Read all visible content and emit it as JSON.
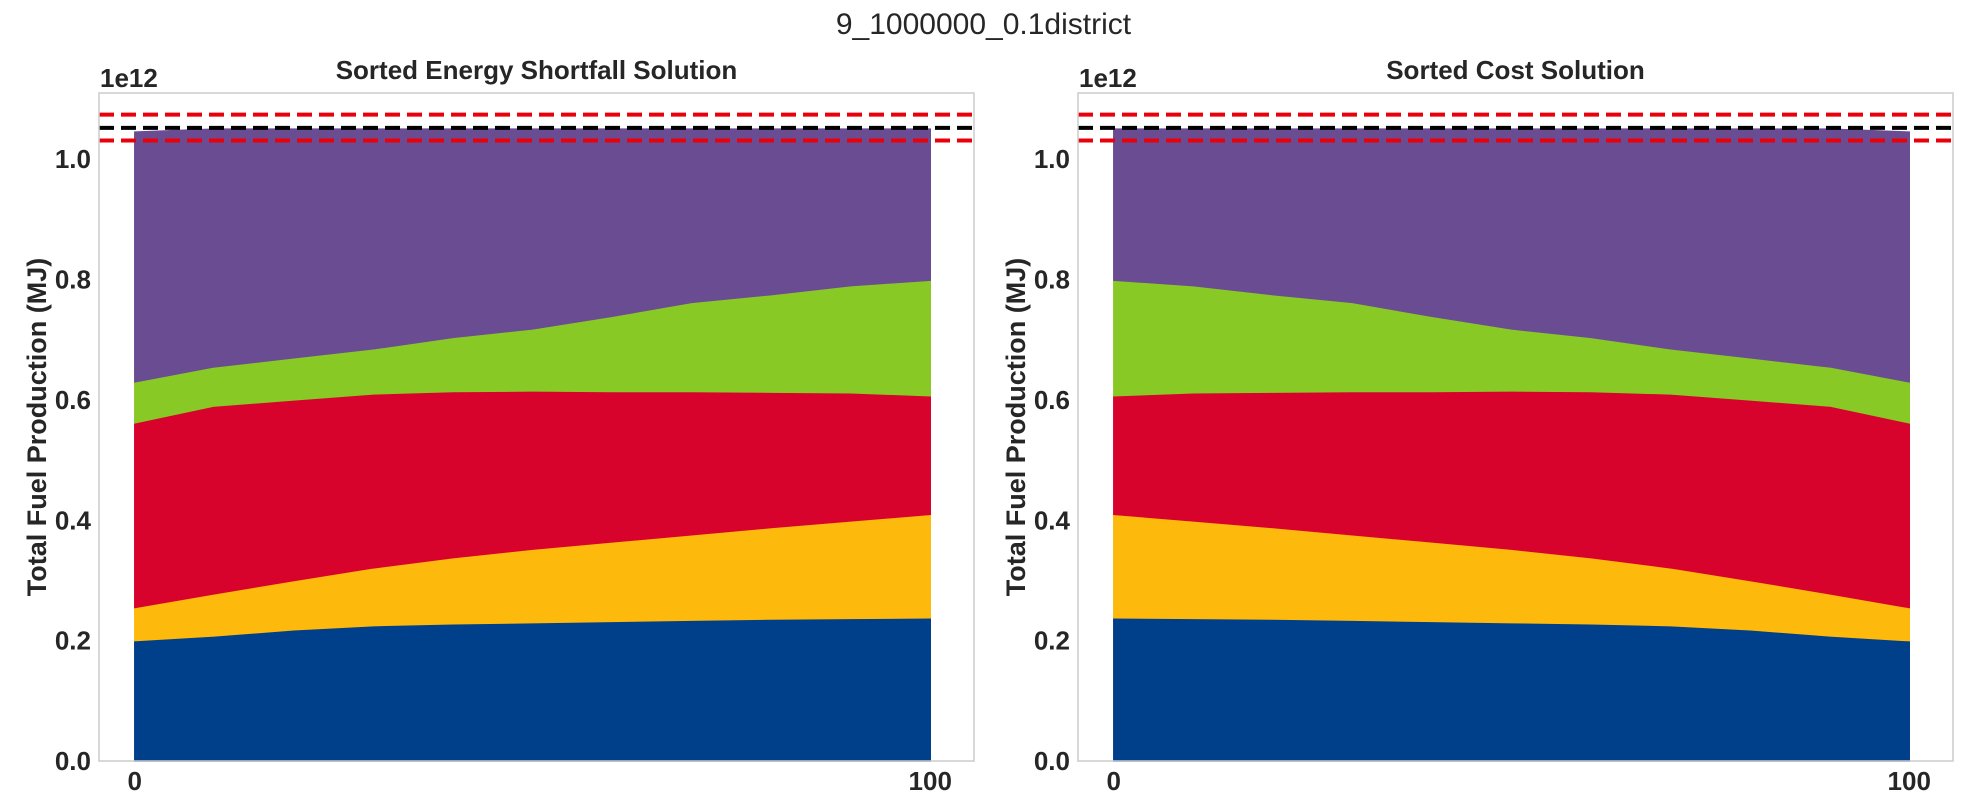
{
  "figure": {
    "suptitle": "9_1000000_0.1district"
  },
  "chart_data": [
    {
      "type": "area",
      "stacked": true,
      "title": "Sorted Energy Shortfall Solution",
      "xlabel": "",
      "ylabel": "Total Fuel Production (MJ)",
      "y_offset_label": "1e12",
      "xlim": [
        -4.5,
        105.5
      ],
      "ylim": [
        0.0,
        1.11
      ],
      "x_ticks": [
        0,
        100
      ],
      "x_tick_labels": [
        "0",
        "100"
      ],
      "y_ticks": [
        0.0,
        0.2,
        0.4,
        0.6,
        0.8,
        1.0
      ],
      "y_tick_labels": [
        "0.0",
        "0.2",
        "0.4",
        "0.6",
        "0.8",
        "1.0"
      ],
      "grid": false,
      "x": [
        0,
        10,
        20,
        30,
        40,
        50,
        60,
        70,
        80,
        90,
        100
      ],
      "series": [
        {
          "color": "#003f8a",
          "values": [
            0.2,
            0.208,
            0.218,
            0.225,
            0.228,
            0.23,
            0.232,
            0.234,
            0.236,
            0.237,
            0.238
          ]
        },
        {
          "color": "#fdb90c",
          "values": [
            0.055,
            0.07,
            0.082,
            0.096,
            0.11,
            0.122,
            0.132,
            0.142,
            0.152,
            0.162,
            0.172
          ]
        },
        {
          "color": "#d8032c",
          "values": [
            0.307,
            0.312,
            0.3,
            0.289,
            0.276,
            0.263,
            0.25,
            0.238,
            0.225,
            0.213,
            0.197
          ]
        },
        {
          "color": "#89c926",
          "values": [
            0.068,
            0.065,
            0.07,
            0.075,
            0.09,
            0.103,
            0.125,
            0.148,
            0.162,
            0.178,
            0.192
          ]
        },
        {
          "color": "#6a4c93",
          "values": [
            0.415,
            0.395,
            0.38,
            0.365,
            0.346,
            0.332,
            0.311,
            0.288,
            0.275,
            0.26,
            0.251
          ]
        }
      ],
      "reference_lines": [
        {
          "y": 1.052,
          "color": "#000000",
          "style": "dashed"
        },
        {
          "y": 1.074,
          "color": "#e8000b",
          "style": "dashed"
        },
        {
          "y": 1.031,
          "color": "#e8000b",
          "style": "dashed"
        }
      ]
    },
    {
      "type": "area",
      "stacked": true,
      "title": "Sorted Cost Solution",
      "xlabel": "",
      "ylabel": "Total Fuel Production (MJ)",
      "y_offset_label": "1e12",
      "xlim": [
        -4.5,
        105.5
      ],
      "ylim": [
        0.0,
        1.11
      ],
      "x_ticks": [
        0,
        100
      ],
      "x_tick_labels": [
        "0",
        "100"
      ],
      "y_ticks": [
        0.0,
        0.2,
        0.4,
        0.6,
        0.8,
        1.0
      ],
      "y_tick_labels": [
        "0.0",
        "0.2",
        "0.4",
        "0.6",
        "0.8",
        "1.0"
      ],
      "grid": false,
      "x": [
        0,
        10,
        20,
        30,
        40,
        50,
        60,
        70,
        80,
        90,
        100
      ],
      "series": [
        {
          "color": "#003f8a",
          "values": [
            0.238,
            0.237,
            0.236,
            0.234,
            0.232,
            0.23,
            0.228,
            0.225,
            0.218,
            0.208,
            0.2
          ]
        },
        {
          "color": "#fdb90c",
          "values": [
            0.172,
            0.162,
            0.152,
            0.142,
            0.132,
            0.122,
            0.11,
            0.096,
            0.082,
            0.07,
            0.055
          ]
        },
        {
          "color": "#d8032c",
          "values": [
            0.197,
            0.213,
            0.225,
            0.238,
            0.25,
            0.263,
            0.276,
            0.289,
            0.3,
            0.312,
            0.307
          ]
        },
        {
          "color": "#89c926",
          "values": [
            0.192,
            0.178,
            0.162,
            0.148,
            0.125,
            0.103,
            0.09,
            0.075,
            0.07,
            0.065,
            0.068
          ]
        },
        {
          "color": "#6a4c93",
          "values": [
            0.251,
            0.26,
            0.275,
            0.288,
            0.311,
            0.332,
            0.346,
            0.365,
            0.38,
            0.395,
            0.415
          ]
        }
      ],
      "reference_lines": [
        {
          "y": 1.052,
          "color": "#000000",
          "style": "dashed"
        },
        {
          "y": 1.074,
          "color": "#e8000b",
          "style": "dashed"
        },
        {
          "y": 1.031,
          "color": "#e8000b",
          "style": "dashed"
        }
      ]
    }
  ]
}
